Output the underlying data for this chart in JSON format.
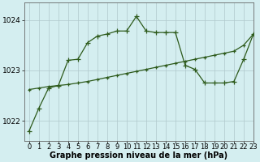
{
  "title": "Graphe pression niveau de la mer (hPa)",
  "background_color": "#d4eef0",
  "grid_color": "#b0c8cc",
  "line_color": "#2d5a1b",
  "marker_color": "#2d5a1b",
  "x_min": -0.5,
  "x_max": 23,
  "y_min": 1021.6,
  "y_max": 1024.35,
  "yticks": [
    1022,
    1023,
    1024
  ],
  "xtick_labels": [
    "0",
    "1",
    "2",
    "3",
    "4",
    "5",
    "6",
    "7",
    "8",
    "9",
    "10",
    "11",
    "12",
    "13",
    "14",
    "15",
    "16",
    "17",
    "18",
    "19",
    "20",
    "21",
    "22",
    "23"
  ],
  "series1_x": [
    0,
    1,
    2,
    3,
    4,
    5,
    6,
    7,
    8,
    9,
    10,
    11,
    12,
    13,
    14,
    15,
    16,
    17,
    18,
    19,
    20,
    21,
    22,
    23
  ],
  "series1_y": [
    1021.8,
    1022.25,
    1022.65,
    1022.7,
    1023.2,
    1023.22,
    1023.55,
    1023.68,
    1023.72,
    1023.78,
    1023.78,
    1024.07,
    1023.78,
    1023.75,
    1023.75,
    1023.75,
    1023.1,
    1023.02,
    1022.75,
    1022.75,
    1022.75,
    1022.78,
    1023.22,
    1023.72
  ],
  "series2_x": [
    0,
    1,
    2,
    3,
    4,
    5,
    6,
    7,
    8,
    9,
    10,
    11,
    12,
    13,
    14,
    15,
    16,
    17,
    18,
    19,
    20,
    21,
    22,
    23
  ],
  "series2_y": [
    1022.62,
    1022.65,
    1022.68,
    1022.7,
    1022.72,
    1022.75,
    1022.78,
    1022.82,
    1022.86,
    1022.9,
    1022.94,
    1022.98,
    1023.02,
    1023.06,
    1023.1,
    1023.14,
    1023.18,
    1023.22,
    1023.26,
    1023.3,
    1023.34,
    1023.38,
    1023.5,
    1023.72
  ],
  "xlabel_fontsize": 6,
  "ylabel_fontsize": 6.5,
  "title_fontsize": 7
}
